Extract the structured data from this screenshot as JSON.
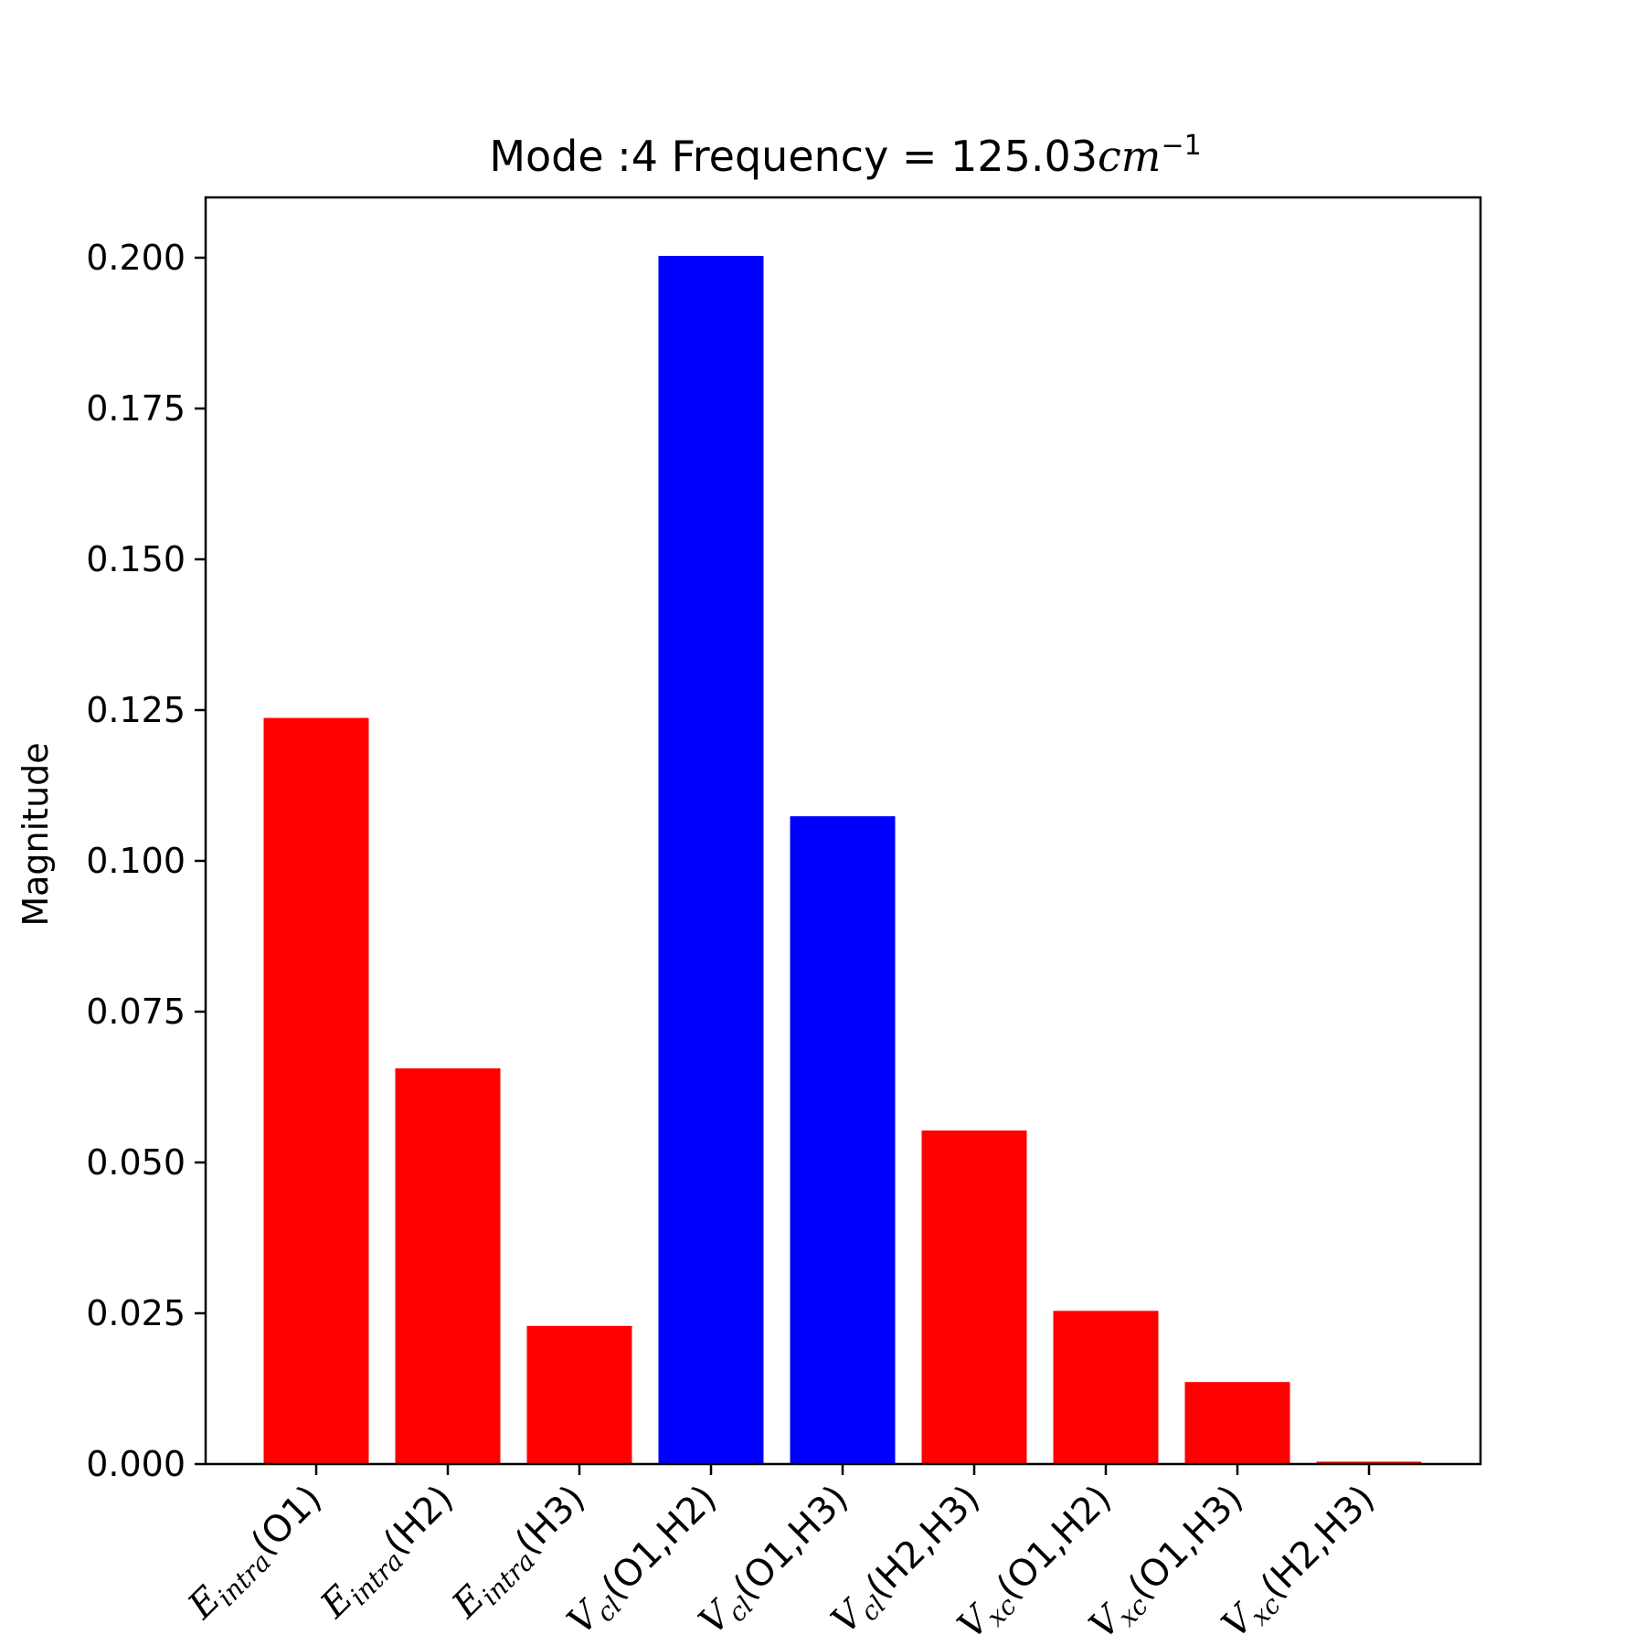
{
  "chart_data": {
    "type": "bar",
    "title": {
      "prefix": "Mode :4   Frequency = 125.03",
      "unit": "cm",
      "exponent": "−1"
    },
    "ylabel": "Magnitude",
    "ylim": [
      0,
      0.21
    ],
    "yticks": [
      "0.000",
      "0.025",
      "0.050",
      "0.075",
      "0.100",
      "0.125",
      "0.150",
      "0.175",
      "0.200"
    ],
    "categories": [
      {
        "sym": "E",
        "sub": "intra",
        "args": "(O1)"
      },
      {
        "sym": "E",
        "sub": "intra",
        "args": "(H2)"
      },
      {
        "sym": "E",
        "sub": "intra",
        "args": "(H3)"
      },
      {
        "sym": "V",
        "sub": "cl",
        "args": "(O1,H2)"
      },
      {
        "sym": "V",
        "sub": "cl",
        "args": "(O1,H3)"
      },
      {
        "sym": "V",
        "sub": "cl",
        "args": "(H2,H3)"
      },
      {
        "sym": "V",
        "sub": "xc",
        "args": "(O1,H2)"
      },
      {
        "sym": "V",
        "sub": "xc",
        "args": "(O1,H3)"
      },
      {
        "sym": "V",
        "sub": "xc",
        "args": "(H2,H3)"
      }
    ],
    "values": [
      0.1237,
      0.0656,
      0.0229,
      0.2003,
      0.1074,
      0.0553,
      0.0254,
      0.0136,
      0.0004
    ],
    "colors": [
      "#ff0000",
      "#ff0000",
      "#ff0000",
      "#0000ff",
      "#0000ff",
      "#ff0000",
      "#ff0000",
      "#ff0000",
      "#ff0000"
    ],
    "grid": false
  }
}
